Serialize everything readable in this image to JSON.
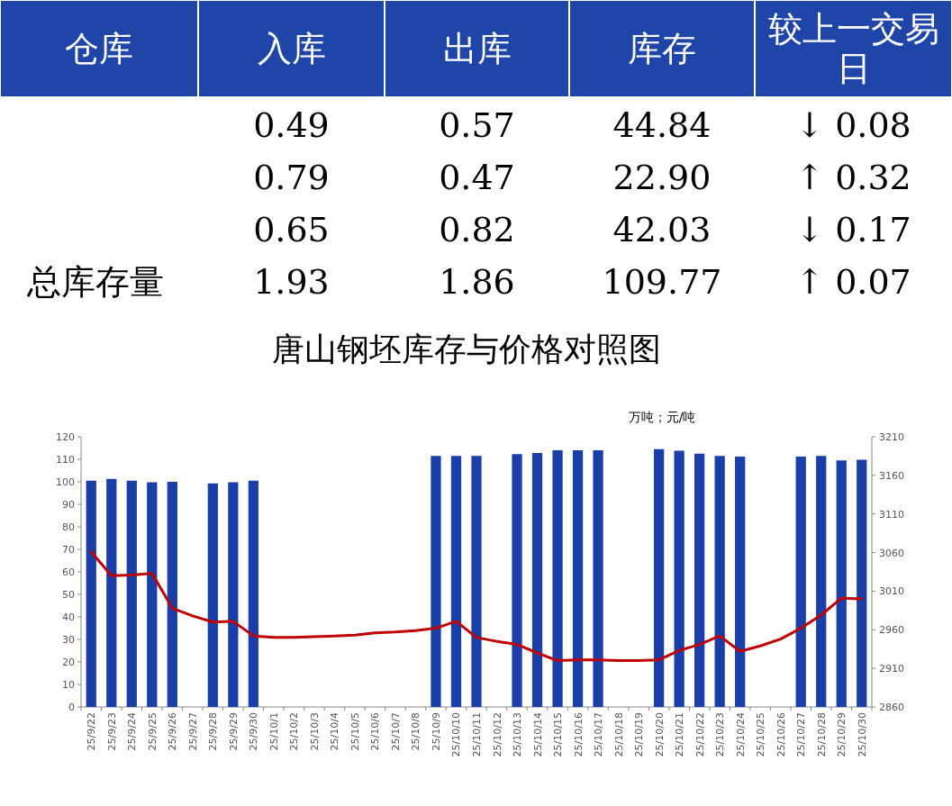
{
  "chart_data": [
    {
      "type": "other",
      "categories": [
        "仓库",
        "入库",
        "出库",
        "库存",
        "较上一交易日"
      ],
      "y_categories": [
        null,
        null,
        null,
        "总库存量"
      ],
      "cell_labels": [
        [
          "0.49",
          "0.57",
          "44.84",
          "↓ 0.08"
        ],
        [
          "0.79",
          "0.47",
          "22.90",
          "↑ 0.32"
        ],
        [
          "0.65",
          "0.82",
          "42.03",
          "↓ 0.17"
        ],
        [
          "1.93",
          "1.86",
          "109.77",
          "↑ 0.07"
        ]
      ]
    },
    {
      "type": "bar",
      "title": "唐山钢坯库存与价格对照图",
      "annotations": [
        "万吨；元/吨"
      ],
      "categories": [
        "25/9/22",
        "25/9/23",
        "25/9/24",
        "25/9/25",
        "25/9/26",
        "25/9/27",
        "25/9/28",
        "25/9/29",
        "25/9/30",
        "25/10/1",
        "25/10/2",
        "25/10/3",
        "25/10/4",
        "25/10/5",
        "25/10/6",
        "25/10/7",
        "25/10/8",
        "25/10/9",
        "25/10/10",
        "25/10/11",
        "25/10/12",
        "25/10/13",
        "25/10/14",
        "25/10/15",
        "25/10/16",
        "25/10/17",
        "25/10/18",
        "25/10/19",
        "25/10/20",
        "25/10/21",
        "25/10/22",
        "25/10/23",
        "25/10/24",
        "25/10/25",
        "25/10/26",
        "25/10/27",
        "25/10/28",
        "25/10/29",
        "25/10/30"
      ],
      "series": [
        {
          "type": "bar",
          "color": "#1a3fa8",
          "values": [
            100.5,
            101.3,
            100.5,
            99.8,
            100,
            null,
            99.3,
            99.8,
            100.5,
            null,
            null,
            null,
            null,
            null,
            null,
            null,
            null,
            111.5,
            111.5,
            111.5,
            null,
            112.3,
            112.8,
            114,
            114,
            114,
            null,
            null,
            114.5,
            113.8,
            112.5,
            111.5,
            111.2,
            null,
            null,
            111.2,
            111.5,
            109.5,
            109.8
          ]
        },
        {
          "type": "line",
          "axis": "y2",
          "color": "#c00000",
          "values": [
            3061,
            3030,
            3031,
            3033,
            2988,
            2978,
            2970,
            2971,
            2952,
            2950,
            2950,
            2951,
            2952,
            2953,
            2956,
            2957,
            2959,
            2962,
            2971,
            2950,
            2945,
            2941,
            2930,
            2920,
            2921,
            2921,
            2920,
            2920,
            2921,
            2933,
            2941,
            2952,
            2932,
            2939,
            2948,
            2962,
            2979,
            3001,
            3000
          ]
        }
      ],
      "ylim": [
        0,
        120
      ],
      "yticks": [
        0,
        10,
        20,
        30,
        40,
        50,
        60,
        70,
        80,
        90,
        100,
        110,
        120
      ],
      "y2lim": [
        2860,
        3210
      ],
      "y2ticks": [
        2860,
        2910,
        2960,
        3010,
        3060,
        3110,
        3160,
        3210
      ]
    }
  ]
}
